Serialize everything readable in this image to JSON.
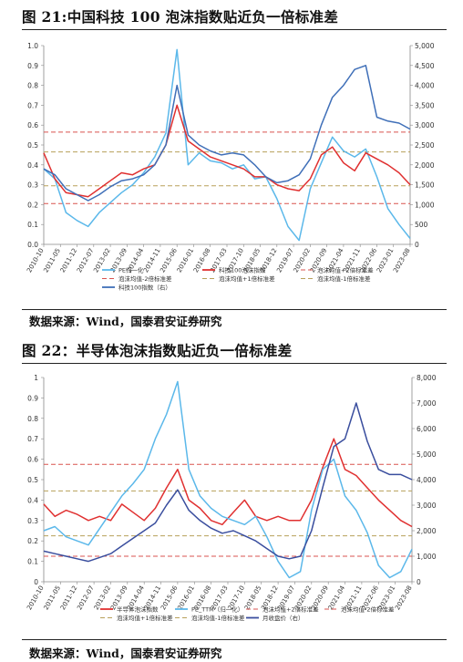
{
  "figures": [
    {
      "title": "图 21:中国科技 100 泡沫指数贴近负一倍标准差",
      "source": "数据来源：Wind，国泰君安证券研究"
    },
    {
      "title": "图 22：半导体泡沫指数贴近负一倍标准差",
      "source": "数据来源：Wind，国泰君安证券研究"
    }
  ],
  "chart_data": [
    {
      "type": "line",
      "title": "",
      "xlabel": "",
      "ylabel": "",
      "x_ticks": [
        "2010-10",
        "2011-05",
        "2011-12",
        "2012-07",
        "2013-02",
        "2013-09",
        "2014-04",
        "2014-11",
        "2015-06",
        "2016-01",
        "2016-08",
        "2017-03",
        "2017-10",
        "2018-05",
        "2018-12",
        "2019-07",
        "2020-02",
        "2020-09",
        "2021-04",
        "2021-11",
        "2022-06",
        "2023-01",
        "2023-08"
      ],
      "ylim_left": [
        0,
        1.0
      ],
      "yticks_left": [
        "0.0",
        "0.1",
        "0.2",
        "0.3",
        "0.4",
        "0.5",
        "0.6",
        "0.7",
        "0.8",
        "0.9",
        "1.0"
      ],
      "ylim_right": [
        0,
        5000
      ],
      "yticks_right": [
        "0",
        "500",
        "1,000",
        "1,500",
        "2,000",
        "2,500",
        "3,000",
        "3,500",
        "4,000",
        "4,500",
        "5,000"
      ],
      "hlines": [
        {
          "name": "泡沫均值+2倍标准差",
          "y": 0.565,
          "color": "#d9534f",
          "dash": "5,3"
        },
        {
          "name": "泡沫均值+1倍标准差",
          "y": 0.465,
          "color": "#b8a05a",
          "dash": "5,3"
        },
        {
          "name": "泡沫均值-1倍标准差",
          "y": 0.295,
          "color": "#b8a05a",
          "dash": "5,3"
        },
        {
          "name": "泡沫均值-2倍标准差",
          "y": 0.205,
          "color": "#d9534f",
          "dash": "5,3"
        }
      ],
      "series": [
        {
          "name": "PE归一化",
          "axis": "left",
          "color": "#5bb8ea",
          "values": [
            0.38,
            0.33,
            0.16,
            0.12,
            0.09,
            0.16,
            0.21,
            0.26,
            0.3,
            0.36,
            0.44,
            0.56,
            0.98,
            0.4,
            0.46,
            0.42,
            0.41,
            0.38,
            0.4,
            0.33,
            0.34,
            0.23,
            0.09,
            0.02,
            0.28,
            0.41,
            0.54,
            0.47,
            0.44,
            0.48,
            0.34,
            0.18,
            0.1,
            0.03
          ]
        },
        {
          "name": "科技100泡沫指数",
          "axis": "left",
          "color": "#e03030",
          "values": [
            0.46,
            0.33,
            0.26,
            0.25,
            0.24,
            0.28,
            0.32,
            0.36,
            0.35,
            0.38,
            0.4,
            0.5,
            0.7,
            0.52,
            0.48,
            0.44,
            0.42,
            0.4,
            0.38,
            0.34,
            0.34,
            0.3,
            0.28,
            0.27,
            0.33,
            0.45,
            0.49,
            0.41,
            0.37,
            0.46,
            0.43,
            0.4,
            0.36,
            0.3
          ]
        },
        {
          "name": "科技100指数（右）",
          "axis": "right",
          "color": "#3f6fb8",
          "values": [
            1900,
            1750,
            1400,
            1250,
            1100,
            1250,
            1450,
            1600,
            1650,
            1750,
            2000,
            2500,
            4000,
            2750,
            2500,
            2350,
            2250,
            2300,
            2250,
            2000,
            1700,
            1550,
            1600,
            1750,
            2150,
            3000,
            3700,
            4000,
            4400,
            4500,
            3200,
            3100,
            3050,
            2900
          ]
        }
      ],
      "legend": [
        "PE归一化",
        "科技100泡沫指数",
        "泡沫均值+2倍标准差",
        "泡沫均值-2倍标准差",
        "泡沫均值-1倍标准差",
        "泡沫均值+1倍标准差",
        "科技100指数（右）"
      ],
      "legend_position": "bottom"
    },
    {
      "type": "line",
      "title": "",
      "xlabel": "",
      "ylabel": "",
      "x_ticks": [
        "2010-10",
        "2011-05",
        "2011-12",
        "2012-07",
        "2013-02",
        "2013-09",
        "2014-04",
        "2014-11",
        "2015-06",
        "2016-01",
        "2016-08",
        "2017-03",
        "2017-10",
        "2018-05",
        "2018-12",
        "2019-07",
        "2020-02",
        "2020-09",
        "2021-04",
        "2021-11",
        "2022-06",
        "2023-01",
        "2023-08"
      ],
      "ylim_left": [
        0,
        1.0
      ],
      "yticks_left": [
        "0",
        "0.1",
        "0.2",
        "0.3",
        "0.4",
        "0.5",
        "0.6",
        "0.7",
        "0.8",
        "0.9",
        "1"
      ],
      "ylim_right": [
        0,
        8000
      ],
      "yticks_right": [
        "0",
        "1,000",
        "2,000",
        "3,000",
        "4,000",
        "5,000",
        "6,000",
        "7,000",
        "8,000"
      ],
      "hlines": [
        {
          "name": "泡沫均值+2倍标准差",
          "y": 0.575,
          "color": "#d9534f",
          "dash": "5,3"
        },
        {
          "name": "泡沫均值+1倍标准差",
          "y": 0.445,
          "color": "#b8a05a",
          "dash": "5,3"
        },
        {
          "name": "泡沫均值-1倍标准差",
          "y": 0.225,
          "color": "#b8a05a",
          "dash": "5,3"
        },
        {
          "name": "泡沫均值-2倍标准差",
          "y": 0.125,
          "color": "#d9534f",
          "dash": "5,3"
        }
      ],
      "series": [
        {
          "name": "半导体泡沫指数",
          "axis": "left",
          "color": "#e03030",
          "values": [
            0.38,
            0.32,
            0.35,
            0.33,
            0.3,
            0.32,
            0.3,
            0.38,
            0.34,
            0.3,
            0.36,
            0.46,
            0.55,
            0.4,
            0.36,
            0.3,
            0.28,
            0.34,
            0.4,
            0.32,
            0.3,
            0.32,
            0.3,
            0.3,
            0.4,
            0.56,
            0.7,
            0.55,
            0.52,
            0.46,
            0.4,
            0.35,
            0.3,
            0.27
          ]
        },
        {
          "name": "PE_TTM（归一化）",
          "axis": "left",
          "color": "#5bb8ea",
          "values": [
            0.25,
            0.27,
            0.22,
            0.2,
            0.18,
            0.26,
            0.34,
            0.42,
            0.48,
            0.55,
            0.7,
            0.82,
            0.98,
            0.55,
            0.42,
            0.36,
            0.32,
            0.3,
            0.28,
            0.32,
            0.22,
            0.1,
            0.02,
            0.05,
            0.35,
            0.55,
            0.6,
            0.42,
            0.35,
            0.24,
            0.08,
            0.02,
            0.05,
            0.16
          ]
        },
        {
          "name": "月收盘价（右）",
          "axis": "right",
          "color": "#3a4e9e",
          "values": [
            1200,
            1100,
            1000,
            900,
            800,
            950,
            1100,
            1400,
            1700,
            2000,
            2300,
            3000,
            3600,
            2800,
            2400,
            2100,
            1900,
            2000,
            1800,
            1600,
            1300,
            1000,
            900,
            1000,
            2000,
            3700,
            5300,
            5600,
            7000,
            5500,
            4400,
            4200,
            4200,
            4000
          ]
        }
      ],
      "legend": [
        "半导体泡沫指数",
        "PE_TTM（归一化）",
        "泡沫均值+2倍标准差",
        "泡沫均值-2倍标准差",
        "泡沫均值+1倍标准差",
        "泡沫均值-1倍标准差",
        "月收盘价（右）"
      ],
      "legend_position": "bottom"
    }
  ]
}
